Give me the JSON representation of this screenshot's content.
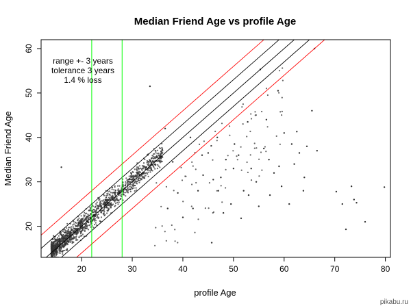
{
  "chart_data": {
    "type": "scatter",
    "title": "Median Friend Age vs profile Age",
    "xlabel": "profile Age",
    "ylabel": "Median Friend Age",
    "xlim": [
      12,
      81
    ],
    "ylim": [
      13,
      62
    ],
    "xticks": [
      20,
      30,
      40,
      50,
      60,
      70,
      80
    ],
    "yticks": [
      20,
      30,
      40,
      50,
      60
    ],
    "grid": false,
    "annotations": [
      "range +- 3 years",
      "tolerance 3 years",
      "1.4 % loss"
    ],
    "point_color": "#333333",
    "cluster": {
      "x_range": [
        14,
        36
      ],
      "slope": 1.0,
      "spread": 2.2
    },
    "points": [
      [
        16,
        33.3
      ],
      [
        36.5,
        42.0
      ],
      [
        41.5,
        40.0
      ],
      [
        43.8,
        36.0
      ],
      [
        45.7,
        16.3
      ],
      [
        46.8,
        40.0
      ],
      [
        46.0,
        30.5
      ],
      [
        47.0,
        28.0
      ],
      [
        48.5,
        35.0
      ],
      [
        49.5,
        25.0
      ],
      [
        50.2,
        38.5
      ],
      [
        51.5,
        21.8
      ],
      [
        52.0,
        28.0
      ],
      [
        52.8,
        43.5
      ],
      [
        53.5,
        33.0
      ],
      [
        54.5,
        30.0
      ],
      [
        55.3,
        55.3
      ],
      [
        56.0,
        37.5
      ],
      [
        57.2,
        27.0
      ],
      [
        58.0,
        32.0
      ],
      [
        58.8,
        50.5
      ],
      [
        59.5,
        29.0
      ],
      [
        60.0,
        41.0
      ],
      [
        61.5,
        38.5
      ],
      [
        62.0,
        34.0
      ],
      [
        62.5,
        41.3
      ],
      [
        63.0,
        36.5
      ],
      [
        63.8,
        28.0
      ],
      [
        64.5,
        38.0
      ],
      [
        65.5,
        46.0
      ],
      [
        66.0,
        60.0
      ],
      [
        66.5,
        37.0
      ],
      [
        70.3,
        27.8
      ],
      [
        71.5,
        25.0
      ],
      [
        72.2,
        19.3
      ],
      [
        73.3,
        29.0
      ],
      [
        73.8,
        26.0
      ],
      [
        74.3,
        25.3
      ],
      [
        76.0,
        21.0
      ],
      [
        79.8,
        28.8
      ],
      [
        33.5,
        51.5
      ],
      [
        38.0,
        34.5
      ],
      [
        44.0,
        31.5
      ],
      [
        39.0,
        27.5
      ],
      [
        42.0,
        24.0
      ],
      [
        48.0,
        23.0
      ],
      [
        55.0,
        24.5
      ],
      [
        45.0,
        36.5
      ],
      [
        50.0,
        33.0
      ],
      [
        57.0,
        35.0
      ],
      [
        61.0,
        25.0
      ],
      [
        53.0,
        27.0
      ],
      [
        40.0,
        22.0
      ],
      [
        37.0,
        24.0
      ],
      [
        43.0,
        28.0
      ],
      [
        47.5,
        31.0
      ],
      [
        51.0,
        36.0
      ],
      [
        56.5,
        44.0
      ],
      [
        59.0,
        33.5
      ],
      [
        64.0,
        31.0
      ]
    ],
    "reference_lines": [
      {
        "color": "#000000",
        "intercept": 0
      },
      {
        "color": "#000000",
        "intercept": 3
      },
      {
        "color": "#000000",
        "intercept": -3
      },
      {
        "color": "#ff0000",
        "intercept": 6
      },
      {
        "color": "#ff0000",
        "intercept": -6
      }
    ],
    "vertical_lines": [
      {
        "x": 22,
        "color": "#00ff00"
      },
      {
        "x": 28,
        "color": "#00ff00"
      }
    ]
  },
  "watermark": "pikabu.ru"
}
